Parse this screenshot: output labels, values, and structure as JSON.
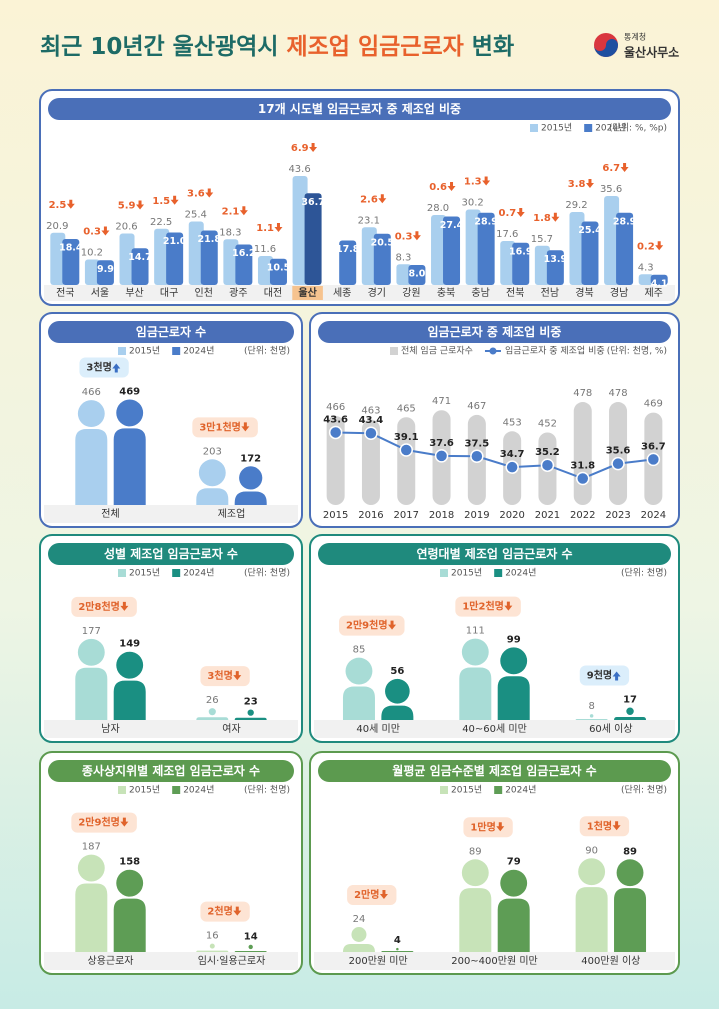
{
  "header": {
    "title_prefix": "최근 10년간 울산광역시",
    "title_highlight": "제조업 임금근로자",
    "title_suffix": "변화",
    "agency": "통계청",
    "office": "울산사무소"
  },
  "chart_data": [
    {
      "type": "bar",
      "title": "17개 시도별 임금근로자 중 제조업 비중",
      "unit": "(단위: %, %p)",
      "categories": [
        "전국",
        "서울",
        "부산",
        "대구",
        "인천",
        "광주",
        "대전",
        "울산",
        "세종",
        "경기",
        "강원",
        "충북",
        "충남",
        "전북",
        "전남",
        "경북",
        "경남",
        "제주"
      ],
      "series": [
        {
          "name": "2015년",
          "color": "#a9cfee",
          "values": [
            20.9,
            10.2,
            20.6,
            22.5,
            25.4,
            18.3,
            11.6,
            43.6,
            null,
            23.1,
            8.3,
            28.0,
            30.2,
            17.6,
            15.7,
            29.2,
            35.6,
            4.3
          ],
          "value_labels": [
            "20.9",
            "10.2",
            "20.6",
            "22.5",
            "25.4",
            "18.3",
            "11.6",
            "43.6",
            null,
            "23.1",
            "8.3",
            "28.0",
            "30.2",
            "17.6",
            "15.7",
            "29.2",
            "35.6",
            "4.3"
          ]
        },
        {
          "name": "2024년",
          "color": "#4a7cc9",
          "values": [
            18.4,
            9.9,
            14.7,
            21.0,
            21.8,
            16.2,
            10.5,
            36.7,
            17.8,
            20.5,
            8.0,
            27.4,
            28.9,
            16.9,
            13.9,
            25.4,
            28.9,
            4.1
          ],
          "value_labels": [
            "18.4",
            "9.9",
            "14.7",
            "21.0",
            "21.8",
            "16.2",
            "10.5",
            "36.7",
            "17.8",
            "20.5",
            "8.0",
            "27.4",
            "28.9",
            "16.9",
            "13.9",
            "25.4",
            "28.9",
            "4.1"
          ]
        }
      ],
      "changes": {
        "values": [
          2.5,
          0.3,
          5.9,
          1.5,
          3.6,
          2.1,
          1.1,
          6.9,
          null,
          2.6,
          0.3,
          0.6,
          1.3,
          0.7,
          1.8,
          3.8,
          6.7,
          0.2
        ],
        "direction": "down",
        "color": "#e8612c"
      },
      "highlight_index": 7,
      "highlight_color": "#2d5597",
      "ylim": [
        0,
        50
      ]
    },
    {
      "type": "pictogram",
      "title": "임금근로자 수",
      "unit": "(단위: 천명)",
      "categories": [
        "전체",
        "제조업"
      ],
      "series": [
        {
          "name": "2015년",
          "color": "#a9cfee",
          "values": [
            466,
            203
          ]
        },
        {
          "name": "2024년",
          "color": "#4a7cc9",
          "values": [
            469,
            172
          ]
        }
      ],
      "changes": {
        "labels": [
          "3천명",
          "3만1천명"
        ],
        "directions": [
          "up",
          "down"
        ]
      },
      "ylim": [
        0,
        520
      ]
    },
    {
      "type": "combo",
      "title": "임금근로자 중 제조업 비중",
      "unit": "(단위: 천명, %)",
      "categories": [
        "2015",
        "2016",
        "2017",
        "2018",
        "2019",
        "2020",
        "2021",
        "2022",
        "2023",
        "2024"
      ],
      "series": [
        {
          "name": "전체 임금 근로자수",
          "color": "#d2d2d2",
          "values": [
            466,
            463,
            465,
            471,
            467,
            453,
            452,
            478,
            478,
            469
          ]
        },
        {
          "name": "임금근로자 중 제조업 비중",
          "color": "#4a7cc9",
          "values": [
            43.6,
            43.4,
            39.1,
            37.6,
            37.5,
            34.7,
            35.2,
            31.8,
            35.6,
            36.7
          ],
          "axis": "y2"
        }
      ],
      "ylim": [
        390,
        490
      ],
      "y2lim": [
        25,
        55
      ]
    },
    {
      "type": "pictogram",
      "title": "성별 제조업 임금근로자 수",
      "unit": "(단위: 천명)",
      "categories": [
        "남자",
        "여자"
      ],
      "series": [
        {
          "name": "2015년",
          "color": "#a8dcd6",
          "values": [
            177,
            26
          ]
        },
        {
          "name": "2024년",
          "color": "#1a8f82",
          "values": [
            149,
            23
          ]
        }
      ],
      "changes": {
        "labels": [
          "2만8천명",
          "3천명"
        ],
        "directions": [
          "down",
          "down"
        ]
      },
      "ylim": [
        0,
        240
      ]
    },
    {
      "type": "pictogram",
      "title": "연령대별 제조업 임금근로자 수",
      "unit": "(단위: 천명)",
      "categories": [
        "40세 미만",
        "40~60세 미만",
        "60세 이상"
      ],
      "series": [
        {
          "name": "2015년",
          "color": "#a8dcd6",
          "values": [
            85,
            111,
            8
          ]
        },
        {
          "name": "2024년",
          "color": "#1a8f82",
          "values": [
            56,
            99,
            17
          ]
        }
      ],
      "changes": {
        "labels": [
          "2만9천명",
          "1만2천명",
          "9천명"
        ],
        "directions": [
          "down",
          "down",
          "up"
        ]
      },
      "ylim": [
        0,
        150
      ]
    },
    {
      "type": "pictogram",
      "title": "종사상지위별 제조업 임금근로자 수",
      "unit": "(단위: 천명)",
      "categories": [
        "상용근로자",
        "임시·일용근로자"
      ],
      "series": [
        {
          "name": "2015년",
          "color": "#c7e3b8",
          "values": [
            187,
            16
          ]
        },
        {
          "name": "2024년",
          "color": "#5e9d55",
          "values": [
            158,
            14
          ]
        }
      ],
      "changes": {
        "labels": [
          "2만9천명",
          "2천명"
        ],
        "directions": [
          "down",
          "down"
        ]
      },
      "ylim": [
        0,
        240
      ]
    },
    {
      "type": "pictogram",
      "title": "월평균 임금수준별 제조업 임금근로자 수",
      "unit": "(단위: 천명)",
      "categories": [
        "200만원 미만",
        "200~400만원 미만",
        "400만원 이상"
      ],
      "series": [
        {
          "name": "2015년",
          "color": "#c7e3b8",
          "values": [
            24,
            89,
            90
          ]
        },
        {
          "name": "2024년",
          "color": "#5e9d55",
          "values": [
            4,
            79,
            89
          ]
        }
      ],
      "changes": {
        "labels": [
          "2만명",
          "1만명",
          "1천명"
        ],
        "directions": [
          "down",
          "down",
          "down"
        ]
      },
      "ylim": [
        0,
        120
      ]
    }
  ]
}
